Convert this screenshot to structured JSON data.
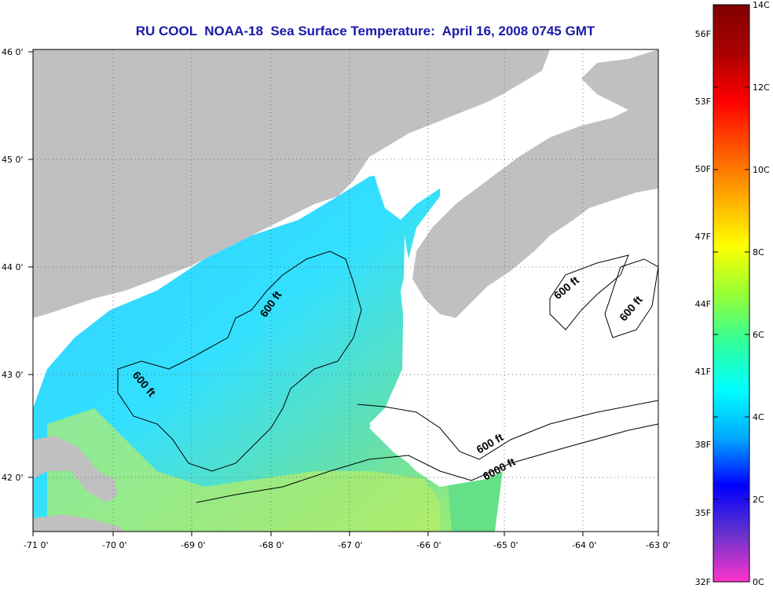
{
  "title": "RU COOL  NOAA-18  Sea Surface Temperature:  April 16, 2008 0745 GMT",
  "map": {
    "lon_ticks": [
      "-71 0'",
      "-70 0'",
      "-69 0'",
      "-68 0'",
      "-67 0'",
      "-66 0'",
      "-65 0'",
      "-64 0'",
      "-63 0'"
    ],
    "lat_ticks": [
      "46 0'",
      "45 0'",
      "44 0'",
      "43 0'",
      "42 0'"
    ],
    "land_color": "#c0c0c0",
    "cloud_color": "#ffffff",
    "contour_labels": [
      "600 ft",
      "600 ft",
      "600 ft",
      "600 ft",
      "600 ft",
      "6000 ft"
    ]
  },
  "colorbar": {
    "fahrenheit_labels": [
      "56F",
      "53F",
      "50F",
      "47F",
      "44F",
      "41F",
      "38F",
      "35F",
      "32F"
    ],
    "celsius_labels": [
      "14C",
      "12C",
      "10C",
      "8C",
      "6C",
      "4C",
      "2C",
      "0C"
    ],
    "colors": [
      "#ff33cc",
      "#6633cc",
      "#0000ff",
      "#00aaff",
      "#00ffff",
      "#33ff99",
      "#99ff33",
      "#ffff00",
      "#ffaa00",
      "#ff5500",
      "#ff0000",
      "#aa0000",
      "#800000"
    ]
  }
}
